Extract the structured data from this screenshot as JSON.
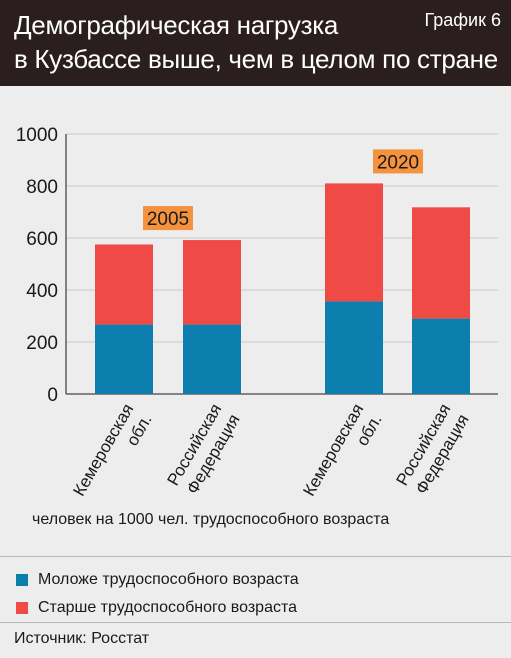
{
  "header": {
    "title_line1": "Демографическая нагрузка",
    "title_line2": "в Кузбассе выше, чем в целом по стране",
    "chart_label": "График 6"
  },
  "unit_note": "человек на 1000 чел. трудоспособного возраста",
  "legend": [
    {
      "label": "Моложе трудоспособного возраста",
      "color": "#0d7fae"
    },
    {
      "label": "Старше трудоспособного возраста",
      "color": "#f04a46"
    }
  ],
  "source": "Источник: Росстат",
  "chart_data": {
    "type": "bar",
    "stacked": true,
    "title": "Демографическая нагрузка в Кузбассе выше, чем в целом по стране",
    "ylabel": "человек на 1000 чел. трудоспособного возраста",
    "ylim": [
      0,
      1000
    ],
    "yticks": [
      0,
      200,
      400,
      600,
      800,
      1000
    ],
    "grid": true,
    "groups": [
      {
        "label": "2005",
        "categories": [
          [
            "Кемеровская",
            "обл."
          ],
          [
            "Российская",
            "Федерация"
          ]
        ]
      },
      {
        "label": "2020",
        "categories": [
          [
            "Кемеровская",
            "обл."
          ],
          [
            "Российская",
            "Федерация"
          ]
        ]
      }
    ],
    "categories": [
      "Кемеровская обл. 2005",
      "Российская Федерация 2005",
      "Кемеровская обл. 2020",
      "Российская Федерация 2020"
    ],
    "series": [
      {
        "name": "Моложе трудоспособного возраста",
        "color": "#0d7fae",
        "values": [
          267,
          267,
          356,
          290
        ]
      },
      {
        "name": "Старше трудоспособного возраста",
        "color": "#f04a46",
        "values": [
          308,
          325,
          454,
          428
        ]
      }
    ],
    "group_label_color": "#f5923e"
  }
}
